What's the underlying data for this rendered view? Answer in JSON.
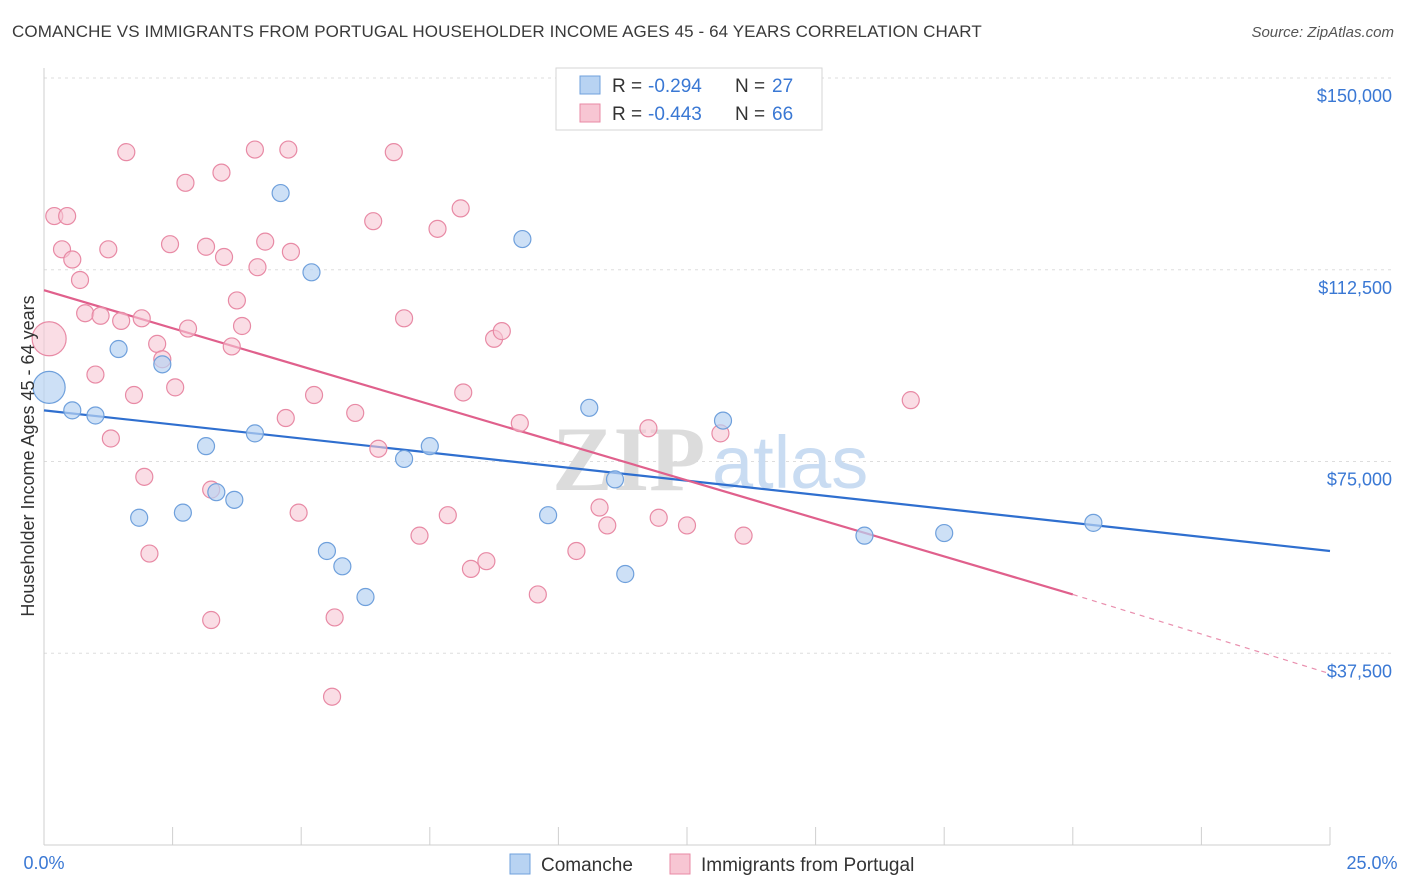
{
  "title": "COMANCHE VS IMMIGRANTS FROM PORTUGAL HOUSEHOLDER INCOME AGES 45 - 64 YEARS CORRELATION CHART",
  "source": "Source: ZipAtlas.com",
  "watermark": {
    "part1": "ZIP",
    "part2": "atlas"
  },
  "legend": {
    "rows": [
      {
        "r_label": "R =",
        "r_value": "-0.294",
        "n_label": "N =",
        "n_value": "27"
      },
      {
        "r_label": "R =",
        "r_value": "-0.443",
        "n_label": "N =",
        "n_value": "66"
      }
    ]
  },
  "bottom_legend": [
    "Comanche",
    "Immigrants from Portugal"
  ],
  "colors": {
    "comanche_fill": "#b8d3f2",
    "comanche_stroke": "#6fa0dc",
    "comanche_line": "#2f6fcf",
    "portugal_fill": "#f7c6d3",
    "portugal_stroke": "#e88aa5",
    "portugal_line": "#e0608c",
    "tick_label": "#3a78d4",
    "grid": "#dddddd"
  },
  "chart_data": {
    "type": "scatter",
    "title": "COMANCHE VS IMMIGRANTS FROM PORTUGAL HOUSEHOLDER INCOME AGES 45 - 64 YEARS CORRELATION CHART",
    "xlabel": "",
    "ylabel": "Householder Income Ages 45 - 64 years",
    "xlim": [
      0,
      25
    ],
    "ylim": [
      0,
      157500
    ],
    "x_tick_labels": [
      "0.0%",
      "25.0%"
    ],
    "y_ticks": [
      37500,
      75000,
      112500,
      150000
    ],
    "y_tick_labels": [
      "$37,500",
      "$75,000",
      "$112,500",
      "$150,000"
    ],
    "grid": true,
    "legend_position": "top-center",
    "series": [
      {
        "name": "Comanche",
        "r": -0.294,
        "n": 27,
        "points": [
          [
            0.1,
            89500
          ],
          [
            0.55,
            85000
          ],
          [
            1.0,
            84000
          ],
          [
            1.45,
            97000
          ],
          [
            2.3,
            94000
          ],
          [
            3.15,
            78000
          ],
          [
            3.35,
            69000
          ],
          [
            3.7,
            67500
          ],
          [
            4.1,
            80500
          ],
          [
            4.6,
            127500
          ],
          [
            5.2,
            112000
          ],
          [
            5.5,
            57500
          ],
          [
            5.8,
            54500
          ],
          [
            6.25,
            48500
          ],
          [
            7.0,
            75500
          ],
          [
            7.5,
            78000
          ],
          [
            9.3,
            118500
          ],
          [
            9.8,
            64500
          ],
          [
            10.6,
            85500
          ],
          [
            11.1,
            71500
          ],
          [
            11.3,
            53000
          ],
          [
            13.2,
            83000
          ],
          [
            15.95,
            60500
          ],
          [
            17.5,
            61000
          ],
          [
            20.4,
            63000
          ],
          [
            1.85,
            64000
          ],
          [
            2.7,
            65000
          ]
        ],
        "trend": {
          "x1": 0,
          "y1": 85000,
          "x2": 25,
          "y2": 57500
        }
      },
      {
        "name": "Immigrants from Portugal",
        "r": -0.443,
        "n": 66,
        "points": [
          [
            0.1,
            99000
          ],
          [
            0.2,
            123000
          ],
          [
            0.45,
            123000
          ],
          [
            0.35,
            116500
          ],
          [
            0.55,
            114500
          ],
          [
            0.7,
            110500
          ],
          [
            0.8,
            104000
          ],
          [
            1.1,
            103500
          ],
          [
            1.25,
            116500
          ],
          [
            1.3,
            79500
          ],
          [
            1.0,
            92000
          ],
          [
            1.5,
            102500
          ],
          [
            1.6,
            135500
          ],
          [
            1.75,
            88000
          ],
          [
            1.9,
            103000
          ],
          [
            1.95,
            72000
          ],
          [
            2.05,
            57000
          ],
          [
            2.2,
            98000
          ],
          [
            2.3,
            95000
          ],
          [
            2.45,
            117500
          ],
          [
            2.55,
            89500
          ],
          [
            2.75,
            129500
          ],
          [
            2.8,
            101000
          ],
          [
            3.15,
            117000
          ],
          [
            3.25,
            69500
          ],
          [
            3.25,
            44000
          ],
          [
            3.45,
            131500
          ],
          [
            3.5,
            115000
          ],
          [
            3.65,
            97500
          ],
          [
            3.75,
            106500
          ],
          [
            3.85,
            101500
          ],
          [
            4.1,
            136000
          ],
          [
            4.15,
            113000
          ],
          [
            4.3,
            118000
          ],
          [
            4.75,
            136000
          ],
          [
            4.7,
            83500
          ],
          [
            4.8,
            116000
          ],
          [
            4.95,
            65000
          ],
          [
            5.25,
            88000
          ],
          [
            5.6,
            29000
          ],
          [
            5.65,
            44500
          ],
          [
            6.05,
            84500
          ],
          [
            6.4,
            122000
          ],
          [
            6.5,
            77500
          ],
          [
            6.8,
            135500
          ],
          [
            7.0,
            103000
          ],
          [
            7.3,
            60500
          ],
          [
            7.65,
            120500
          ],
          [
            7.85,
            64500
          ],
          [
            8.1,
            124500
          ],
          [
            8.15,
            88500
          ],
          [
            8.3,
            54000
          ],
          [
            8.6,
            55500
          ],
          [
            8.75,
            99000
          ],
          [
            8.9,
            100500
          ],
          [
            9.25,
            82500
          ],
          [
            9.6,
            49000
          ],
          [
            10.35,
            57500
          ],
          [
            10.8,
            66000
          ],
          [
            10.95,
            62500
          ],
          [
            11.75,
            81500
          ],
          [
            11.95,
            64000
          ],
          [
            12.5,
            62500
          ],
          [
            13.15,
            80500
          ],
          [
            13.6,
            60500
          ],
          [
            16.85,
            87000
          ]
        ],
        "trend": {
          "x1": 0,
          "y1": 108500,
          "x2": 20.0,
          "y2": 49000
        },
        "trend_dashed": {
          "x1": 20.0,
          "y1": 49000,
          "x2": 25,
          "y2": 33500
        }
      }
    ]
  }
}
